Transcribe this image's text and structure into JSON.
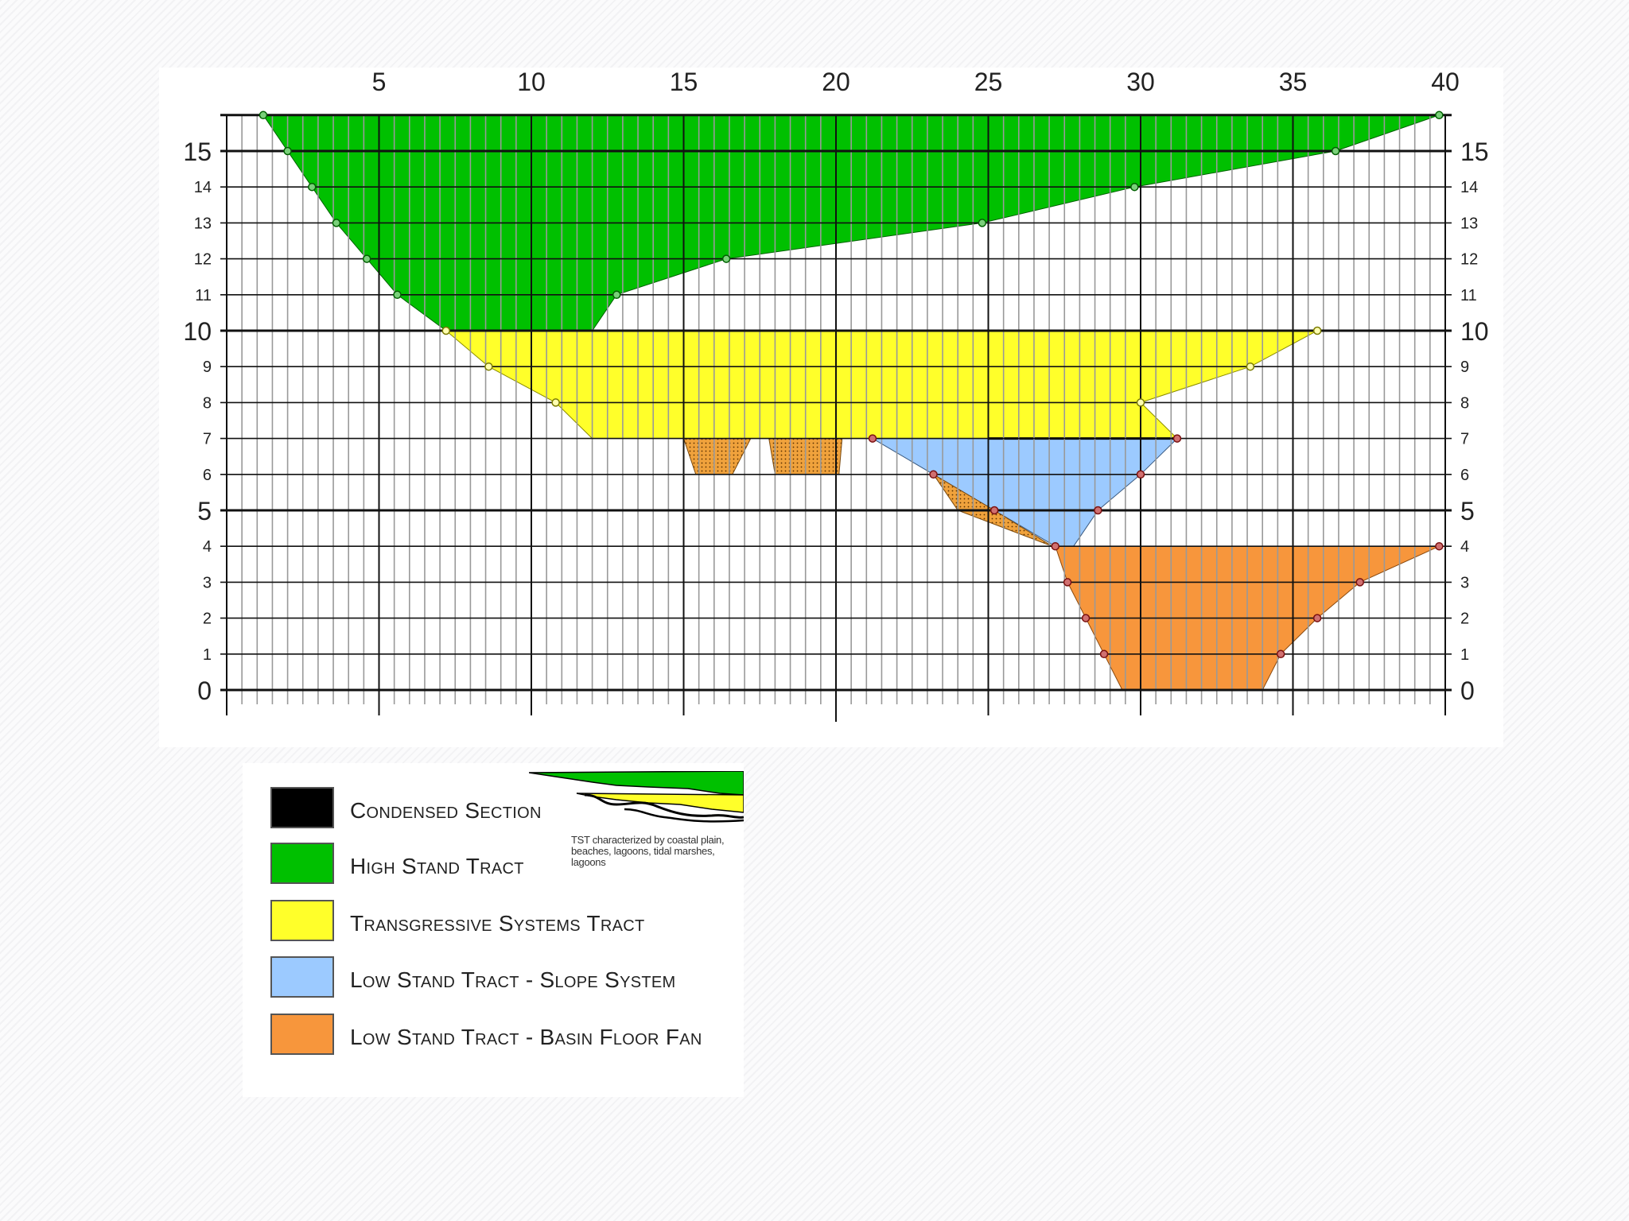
{
  "x_axis": {
    "ticks": [
      "5",
      "10",
      "15",
      "20",
      "25",
      "30",
      "35",
      "40"
    ]
  },
  "y_axis": {
    "major_ticks": [
      "0",
      "5",
      "10",
      "15"
    ],
    "minor_ticks": [
      "1",
      "2",
      "3",
      "4",
      "6",
      "7",
      "8",
      "9",
      "11",
      "12",
      "13",
      "14"
    ]
  },
  "colors": {
    "condensed": "#000000",
    "high_stand": "#00c000",
    "transgressive": "#ffff2a",
    "low_stand_slope": "#9ccaff",
    "basin_floor_fan": "#f7963c",
    "sand_fill": "#f0a23c",
    "grid": "#000000"
  },
  "units": {
    "high_stand_tract": [
      [
        1.2,
        16
      ],
      [
        2,
        15
      ],
      [
        2.8,
        14
      ],
      [
        3.6,
        13
      ],
      [
        4.6,
        12
      ],
      [
        5.6,
        11
      ],
      [
        7.2,
        10
      ],
      [
        12,
        10
      ],
      [
        12.8,
        11
      ],
      [
        16.4,
        12
      ],
      [
        24.8,
        13
      ],
      [
        29.8,
        14
      ],
      [
        36.4,
        15
      ],
      [
        39.8,
        16
      ]
    ],
    "transgressive_systems_tract": [
      [
        7.2,
        10
      ],
      [
        8.6,
        9
      ],
      [
        10.8,
        8
      ],
      [
        12,
        7
      ],
      [
        31.2,
        7
      ],
      [
        30,
        8
      ],
      [
        33.6,
        9
      ],
      [
        35.8,
        10
      ]
    ],
    "low_stand_slope_system": [
      [
        21.2,
        7
      ],
      [
        31.2,
        7
      ],
      [
        30,
        6
      ],
      [
        28.6,
        5
      ],
      [
        27.8,
        4
      ],
      [
        27.2,
        4
      ],
      [
        25.2,
        5
      ],
      [
        23.2,
        6
      ]
    ],
    "basin_floor_fan": [
      [
        27.2,
        4
      ],
      [
        39.8,
        4
      ],
      [
        37.2,
        3
      ],
      [
        35.8,
        2
      ],
      [
        34.6,
        1
      ],
      [
        34,
        0
      ],
      [
        29.4,
        0
      ],
      [
        28.8,
        1
      ],
      [
        28.2,
        2
      ],
      [
        27.6,
        3
      ]
    ],
    "sand_lenses": [
      [
        [
          15,
          7
        ],
        [
          17.2,
          7
        ],
        [
          16.6,
          6
        ],
        [
          15.4,
          6
        ]
      ],
      [
        [
          17.8,
          7
        ],
        [
          20.2,
          7
        ],
        [
          20.1,
          6
        ],
        [
          18,
          6
        ]
      ],
      [
        [
          23.2,
          6
        ],
        [
          24,
          5
        ],
        [
          27.1,
          4
        ],
        [
          25.2,
          5
        ]
      ]
    ],
    "condensed_line": [
      [
        25,
        7
      ],
      [
        31.2,
        7
      ]
    ]
  },
  "legend": [
    {
      "label": "Condensed Section",
      "color": "#000000"
    },
    {
      "label": "High Stand Tract",
      "color": "#00c000"
    },
    {
      "label": "Transgressive Systems Tract",
      "color": "#ffff2a"
    },
    {
      "label": "Low Stand Tract - Slope System",
      "color": "#9ccaff"
    },
    {
      "label": "Low Stand Tract - Basin Floor Fan",
      "color": "#f7963c"
    }
  ],
  "inset_caption": "TST characterized by coastal plain, beaches, lagoons, tidal marshes, lagoons"
}
